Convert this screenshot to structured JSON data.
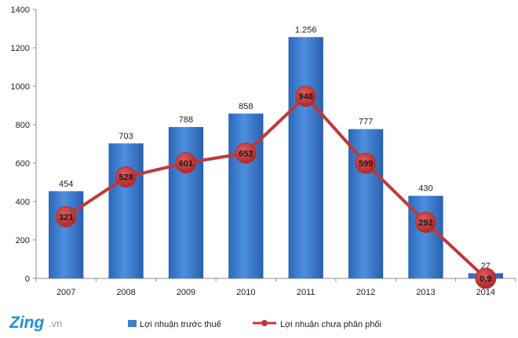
{
  "logo": {
    "main": "Zing",
    "suffix": ".vn"
  },
  "chart_data": {
    "type": "bar",
    "categories": [
      "2007",
      "2008",
      "2009",
      "2010",
      "2011",
      "2012",
      "2013",
      "2014"
    ],
    "series": [
      {
        "name": "Lợi nhuận trước thuế",
        "type": "bar",
        "color": "#3f7ed0",
        "values": [
          454,
          703,
          788,
          858,
          1256,
          777,
          430,
          27
        ],
        "labels": [
          "454",
          "703",
          "788",
          "858",
          "1.256",
          "777",
          "430",
          "27"
        ]
      },
      {
        "name": "Lợi nhuận chưa phân phối",
        "type": "line",
        "color": "#c0383a",
        "values": [
          321,
          528,
          601,
          652,
          948,
          599,
          292,
          0.9
        ],
        "labels": [
          "321",
          "528",
          "601",
          "652",
          "948",
          "599",
          "292",
          "0,9"
        ]
      }
    ],
    "ylim": [
      0,
      1400
    ],
    "yticks": [
      0,
      200,
      400,
      600,
      800,
      1000,
      1200,
      1400
    ],
    "grid": false,
    "legend": "bottom",
    "title": "",
    "xlabel": "",
    "ylabel": ""
  }
}
